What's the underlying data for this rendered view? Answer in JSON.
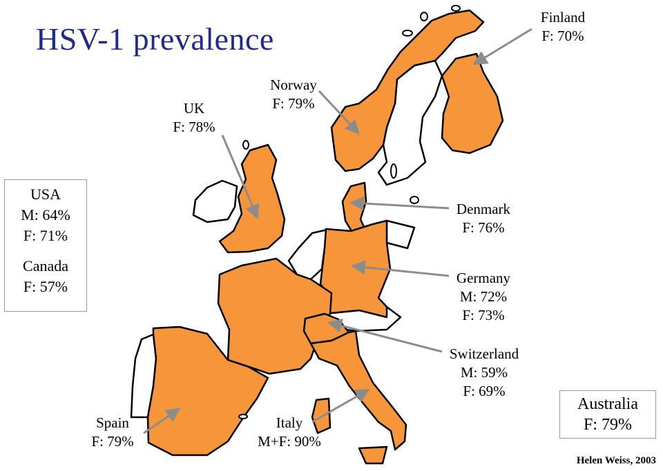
{
  "title": "HSV-1 prevalence",
  "colors": {
    "highlight": "#f7953a",
    "outline": "#000000",
    "title": "#1f2a8c",
    "arrow": "#8c8c8c"
  },
  "labels": {
    "finland": [
      "Finland",
      "F: 70%"
    ],
    "norway": [
      "Norway",
      "F: 79%"
    ],
    "uk": [
      "UK",
      "F: 78%"
    ],
    "denmark": [
      "Denmark",
      "F: 76%"
    ],
    "germany": [
      "Germany",
      "M: 72%",
      "F: 73%"
    ],
    "switzerland": [
      "Switzerland",
      "M: 59%",
      "F: 69%"
    ],
    "spain": [
      "Spain",
      "F: 79%"
    ],
    "italy": [
      "Italy",
      "M+F: 90%"
    ]
  },
  "side_boxes": {
    "usa_canada": [
      "USA",
      "M: 64%",
      "F: 71%",
      "",
      "Canada",
      "F: 57%"
    ],
    "australia": [
      "Australia",
      "F: 79%"
    ]
  },
  "credit": "Helen Weiss, 2003",
  "highlighted_countries": [
    "Finland",
    "Norway",
    "UK",
    "Denmark",
    "Germany",
    "Switzerland",
    "France",
    "Spain",
    "Italy"
  ]
}
